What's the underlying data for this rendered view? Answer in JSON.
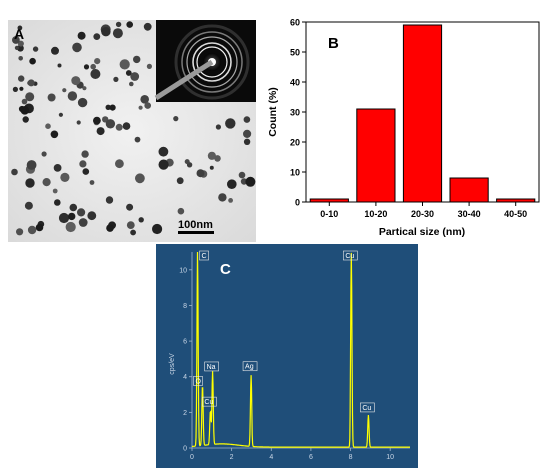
{
  "panels": {
    "a": {
      "letter": "A",
      "scale_bar_label": "100nm"
    },
    "b": {
      "letter": "B"
    },
    "c": {
      "letter": "C"
    }
  },
  "chart_data": [
    {
      "type": "bar",
      "title": "",
      "categories": [
        "0-10",
        "10-20",
        "20-30",
        "30-40",
        "40-50"
      ],
      "values": [
        1,
        31,
        59,
        8,
        1
      ],
      "xlabel": "Partical size (nm)",
      "ylabel": "Count (%)",
      "ylim": [
        0,
        60
      ],
      "yticks": [
        0,
        10,
        20,
        30,
        40,
        50,
        60
      ],
      "grid": false,
      "bar_color": "#ff0000"
    },
    {
      "type": "line",
      "title": "",
      "xlabel": "",
      "ylabel": "cps/eV",
      "xlim": [
        0,
        11
      ],
      "ylim": [
        0,
        11
      ],
      "xticks": [
        0,
        2,
        4,
        6,
        8,
        10
      ],
      "yticks": [
        0,
        2,
        4,
        6,
        8,
        10
      ],
      "background_color": "#1f4e79",
      "line_color": "#ffff00",
      "peaks": [
        {
          "element": "C",
          "energy": 0.28,
          "intensity": 10.9
        },
        {
          "element": "O",
          "energy": 0.53,
          "intensity": 3.4
        },
        {
          "element": "Na",
          "energy": 1.04,
          "intensity": 4.1
        },
        {
          "element": "Cu",
          "energy": 0.93,
          "intensity": 1.9
        },
        {
          "element": "Ag",
          "energy": 2.98,
          "intensity": 4.0
        },
        {
          "element": "Cu",
          "energy": 8.04,
          "intensity": 10.9
        },
        {
          "element": "Cu",
          "energy": 8.9,
          "intensity": 1.8
        }
      ]
    }
  ]
}
